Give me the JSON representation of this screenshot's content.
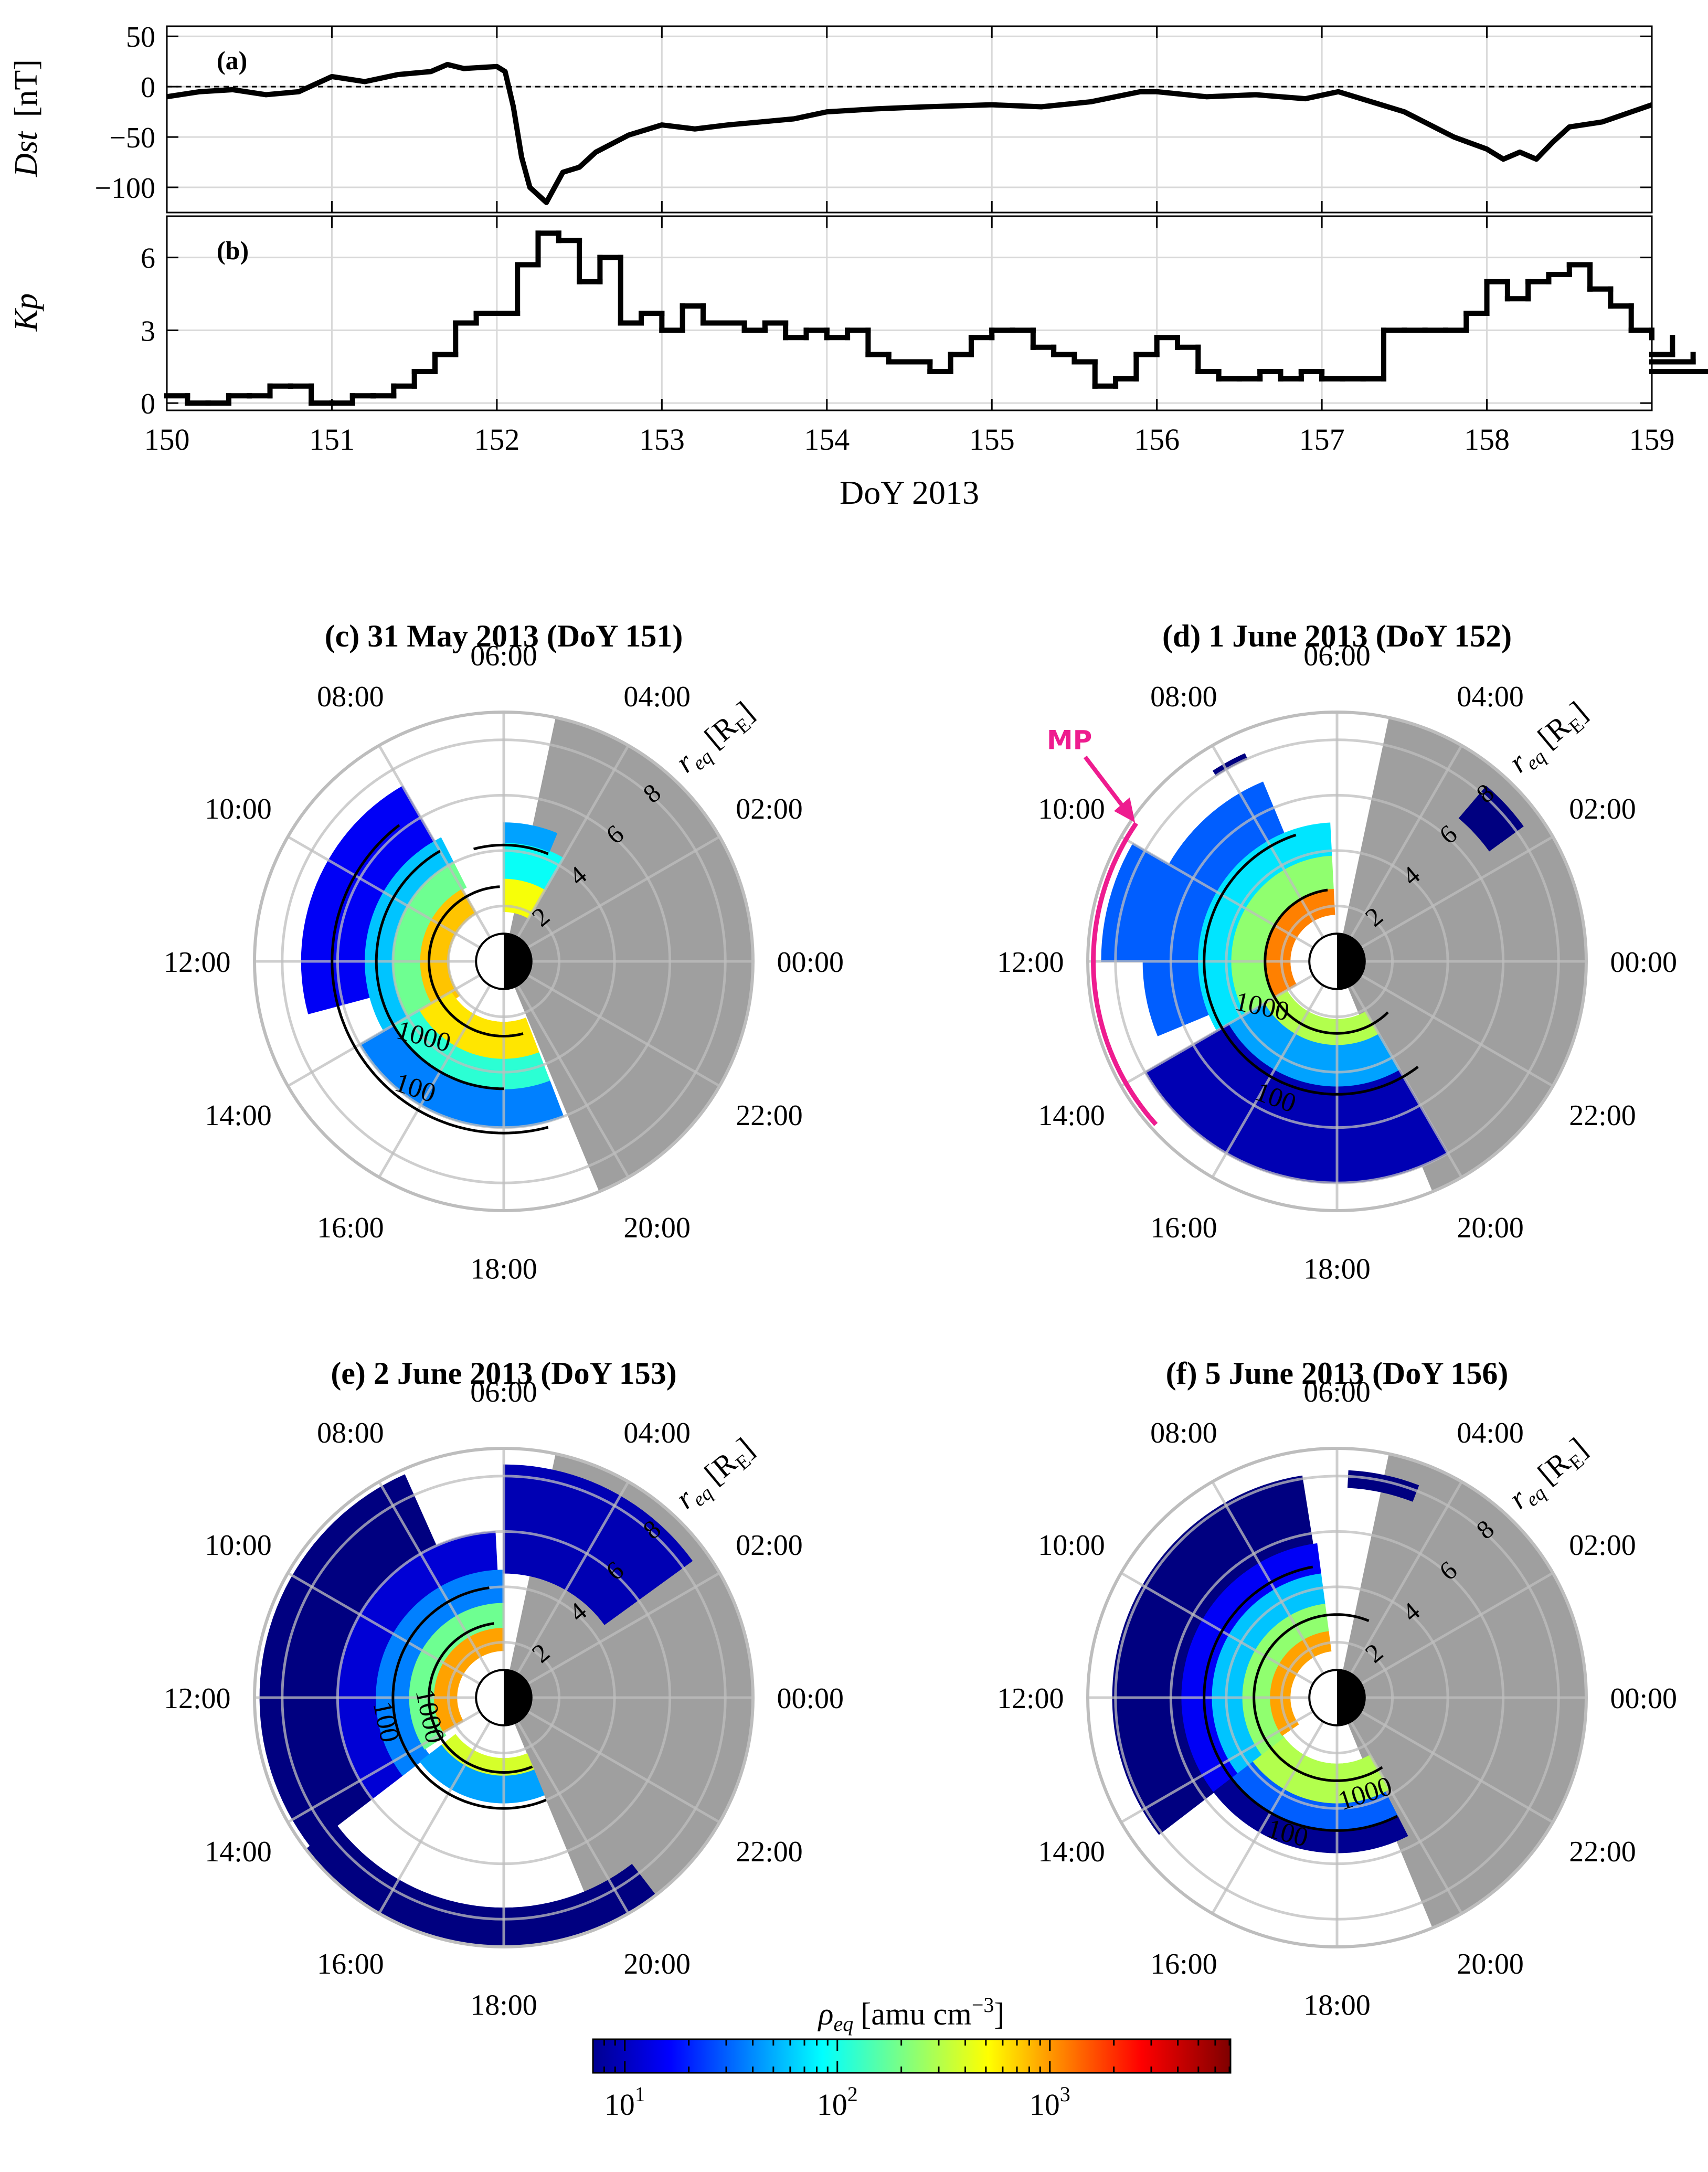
{
  "colors": {
    "axis": "#000000",
    "grid": "#d9d9d9",
    "polar_grid": "#bdbdbd",
    "unavailable": "#9f9f9f",
    "mp": "#ee1c8f"
  },
  "chart_data": [
    {
      "id": "a",
      "type": "line",
      "panel_label": "(a)",
      "ylabel_var": "Dst",
      "ylabel_unit": "[nT]",
      "xlim": [
        150,
        159
      ],
      "ylim": [
        -125,
        60
      ],
      "yticks": [
        50,
        0,
        -50,
        -100
      ],
      "ytick_labels": [
        "50",
        "0",
        "−50",
        "−100"
      ],
      "reference_line": 0,
      "x": [
        150.0,
        150.2,
        150.4,
        150.6,
        150.8,
        151.0,
        151.2,
        151.4,
        151.6,
        151.7,
        151.8,
        152.0,
        152.05,
        152.1,
        152.15,
        152.2,
        152.3,
        152.4,
        152.5,
        152.6,
        152.8,
        153.0,
        153.2,
        153.4,
        153.6,
        153.8,
        154.0,
        154.3,
        154.6,
        155.0,
        155.3,
        155.6,
        155.9,
        156.0,
        156.3,
        156.6,
        156.9,
        157.1,
        157.3,
        157.5,
        157.8,
        158.0,
        158.1,
        158.2,
        158.3,
        158.4,
        158.5,
        158.7,
        159.0
      ],
      "y": [
        -10,
        -5,
        -3,
        -8,
        -5,
        10,
        5,
        12,
        15,
        22,
        18,
        20,
        15,
        -20,
        -70,
        -100,
        -115,
        -85,
        -80,
        -65,
        -48,
        -38,
        -42,
        -38,
        -35,
        -32,
        -25,
        -22,
        -20,
        -18,
        -20,
        -15,
        -5,
        -5,
        -10,
        -8,
        -12,
        -5,
        -15,
        -25,
        -50,
        -62,
        -72,
        -65,
        -72,
        -55,
        -40,
        -35,
        -18
      ]
    },
    {
      "id": "b",
      "type": "step",
      "panel_label": "(b)",
      "ylabel_var": "Kp",
      "xlim": [
        150,
        159
      ],
      "ylim": [
        -0.3,
        7.7
      ],
      "yticks": [
        6,
        3,
        0
      ],
      "ytick_labels": [
        "6",
        "3",
        "0"
      ],
      "xticks": [
        150,
        151,
        152,
        153,
        154,
        155,
        156,
        157,
        158,
        159
      ],
      "xtick_labels": [
        "150",
        "151",
        "152",
        "153",
        "154",
        "155",
        "156",
        "157",
        "158",
        "159"
      ],
      "xlabel": "DoY 2013",
      "bin_hours": 3,
      "values": [
        0.3,
        0,
        0,
        0.3,
        0.3,
        0.7,
        0.7,
        0,
        0,
        0.3,
        0.3,
        0.7,
        1.3,
        2.0,
        3.3,
        3.7,
        3.7,
        5.7,
        7.0,
        6.7,
        5.0,
        6.0,
        3.3,
        3.7,
        3.0,
        4.0,
        3.3,
        3.3,
        3.0,
        3.3,
        2.7,
        3.0,
        2.7,
        3.0,
        2.0,
        1.7,
        1.7,
        1.3,
        2.0,
        2.7,
        3.0,
        3.0,
        2.3,
        2.0,
        1.7,
        0.7,
        1.0,
        2.0,
        2.7,
        2.3,
        1.3,
        1.0,
        1.0,
        1.3,
        1.0,
        1.3,
        1.0,
        1.0,
        1.0,
        3.0,
        3.0,
        3.0,
        3.0,
        3.7,
        5.0,
        4.3,
        5.0,
        5.3,
        5.7,
        4.7,
        4.0,
        3.0,
        2.7,
        2.0,
        1.7,
        1.3,
        1.3
      ]
    }
  ],
  "polar_panels": [
    {
      "id": "c",
      "title": "(c) 31 May 2013 (DoY 151)",
      "contour_labels": [
        {
          "text": "1000",
          "r": 4.0,
          "mlt": 14.8,
          "rot": 15
        },
        {
          "text": "100",
          "r": 5.6,
          "mlt": 15.6,
          "rot": 18
        }
      ],
      "blobs": [
        {
          "r1": 5.0,
          "r2": 7.3,
          "m1": 8.0,
          "m2": 13.0,
          "level": 1.2
        },
        {
          "r1": 4.0,
          "r2": 5.0,
          "m1": 7.8,
          "m2": 14.0,
          "level": 1.8
        },
        {
          "r1": 3.0,
          "r2": 4.0,
          "m1": 7.8,
          "m2": 14.5,
          "level": 2.3
        },
        {
          "r1": 2.0,
          "r2": 3.0,
          "m1": 8.0,
          "m2": 14.5,
          "level": 2.9
        },
        {
          "r1": 1.8,
          "r2": 3.0,
          "m1": 4.0,
          "m2": 6.0,
          "level": 2.7
        },
        {
          "r1": 3.0,
          "r2": 4.3,
          "m1": 4.0,
          "m2": 6.0,
          "level": 2.0
        },
        {
          "r1": 4.3,
          "r2": 5.0,
          "m1": 4.5,
          "m2": 6.0,
          "level": 1.7
        },
        {
          "r1": 4.6,
          "r2": 6.0,
          "m1": 14.0,
          "m2": 19.4,
          "level": 1.6
        },
        {
          "r1": 3.5,
          "r2": 4.6,
          "m1": 14.0,
          "m2": 19.4,
          "level": 2.1
        },
        {
          "r1": 2.2,
          "r2": 3.5,
          "m1": 14.0,
          "m2": 19.4,
          "level": 2.8
        }
      ],
      "contours": [
        {
          "r": 2.7,
          "m1": 6.2,
          "m2": 14.0,
          "tail_to": 19.0
        },
        {
          "r": 4.2,
          "m1": 4.5,
          "m2": 7.0,
          "tail_to": 7.0
        },
        {
          "r": 4.6,
          "m1": 8.0,
          "m2": 13.8,
          "tail_to": 18.0
        },
        {
          "r": 6.2,
          "m1": 8.5,
          "m2": 15.0,
          "tail_to": 19.0
        }
      ],
      "mp": null
    },
    {
      "id": "d",
      "title": "(d) 1 June 2013 (DoY 152)",
      "contour_labels": [
        {
          "text": "1000",
          "r": 3.2,
          "mlt": 14.0,
          "rot": 12
        },
        {
          "text": "100",
          "r": 5.4,
          "mlt": 16.3,
          "rot": 20
        }
      ],
      "blobs": [
        {
          "r1": 6.8,
          "r2": 8.5,
          "m1": 10.0,
          "m2": 12.0,
          "level": 1.5
        },
        {
          "r1": 5.0,
          "r2": 7.0,
          "m1": 7.5,
          "m2": 13.5,
          "level": 1.5
        },
        {
          "r1": 3.8,
          "r2": 5.0,
          "m1": 6.2,
          "m2": 14.2,
          "level": 1.9
        },
        {
          "r1": 2.6,
          "r2": 3.8,
          "m1": 6.2,
          "m2": 14.2,
          "level": 2.4
        },
        {
          "r1": 1.7,
          "r2": 2.6,
          "m1": 6.2,
          "m2": 14.0,
          "level": 3.1
        },
        {
          "r1": 4.5,
          "r2": 8.0,
          "m1": 14.0,
          "m2": 20.0,
          "level": 1.0
        },
        {
          "r1": 3.0,
          "r2": 4.5,
          "m1": 14.0,
          "m2": 20.0,
          "level": 1.7
        },
        {
          "r1": 2.1,
          "r2": 3.0,
          "m1": 14.0,
          "m2": 20.0,
          "level": 2.5
        },
        {
          "r1": 6.8,
          "r2": 8.3,
          "m1": 2.4,
          "m2": 3.3,
          "level": 0.5
        },
        {
          "r1": 8.0,
          "r2": 8.2,
          "m1": 7.6,
          "m2": 8.2,
          "level": 0.4
        }
      ],
      "contours": [
        {
          "r": 2.6,
          "m1": 6.5,
          "m2": 14.0,
          "tail_to": 21.0
        },
        {
          "r": 4.8,
          "m1": 7.2,
          "m2": 14.5,
          "tail_to": 20.5
        }
      ],
      "mp": {
        "label": "MP",
        "r": 8.8,
        "m1": 9.7,
        "m2": 14.8
      }
    },
    {
      "id": "e",
      "title": "(e) 2 June 2013 (DoY 153)",
      "contour_labels": [
        {
          "text": "1000",
          "r": 3.0,
          "mlt": 12.5,
          "rot": 78
        },
        {
          "text": "100",
          "r": 4.6,
          "mlt": 12.5,
          "rot": 78
        }
      ],
      "blobs": [
        {
          "r1": 6.0,
          "r2": 8.8,
          "m1": 7.6,
          "m2": 14.5,
          "level": 0.7
        },
        {
          "r1": 4.6,
          "r2": 6.0,
          "m1": 6.2,
          "m2": 14.5,
          "level": 1.1
        },
        {
          "r1": 3.4,
          "r2": 4.6,
          "m1": 6.0,
          "m2": 14.5,
          "level": 1.6
        },
        {
          "r1": 2.5,
          "r2": 3.4,
          "m1": 6.0,
          "m2": 14.2,
          "level": 2.3
        },
        {
          "r1": 1.7,
          "r2": 2.5,
          "m1": 6.0,
          "m2": 14.0,
          "level": 3.0
        },
        {
          "r1": 4.5,
          "r2": 8.4,
          "m1": 2.4,
          "m2": 6.0,
          "level": 1.0
        },
        {
          "r1": 7.6,
          "r2": 9.0,
          "m1": 14.5,
          "m2": 20.5,
          "level": 0.3
        },
        {
          "r1": 2.8,
          "r2": 3.8,
          "m1": 14.5,
          "m2": 19.5,
          "level": 1.7
        },
        {
          "r1": 2.2,
          "r2": 2.8,
          "m1": 14.5,
          "m2": 19.5,
          "level": 2.6
        }
      ],
      "contours": [
        {
          "r": 2.7,
          "m1": 6.5,
          "m2": 14.2,
          "tail_to": 19.5
        },
        {
          "r": 4.0,
          "m1": 6.5,
          "m2": 13.8,
          "tail_to": 19.5
        }
      ],
      "mp": null
    },
    {
      "id": "f",
      "title": "(f) 5 June 2013 (DoY 156)",
      "contour_labels": [
        {
          "text": "1000",
          "r": 3.6,
          "mlt": 19.2,
          "rot": -18
        },
        {
          "text": "100",
          "r": 5.2,
          "mlt": 16.6,
          "rot": 15
        }
      ],
      "blobs": [
        {
          "r1": 5.6,
          "r2": 8.1,
          "m1": 6.6,
          "m2": 14.5,
          "level": 0.6
        },
        {
          "r1": 4.5,
          "r2": 5.6,
          "m1": 6.5,
          "m2": 14.5,
          "level": 1.2
        },
        {
          "r1": 3.4,
          "r2": 4.5,
          "m1": 6.5,
          "m2": 14.5,
          "level": 1.8
        },
        {
          "r1": 2.4,
          "r2": 3.4,
          "m1": 6.5,
          "m2": 14.5,
          "level": 2.4
        },
        {
          "r1": 1.7,
          "r2": 2.4,
          "m1": 6.5,
          "m2": 14.3,
          "level": 3.0
        },
        {
          "r1": 4.8,
          "r2": 5.6,
          "m1": 14.5,
          "m2": 19.8,
          "level": 0.9
        },
        {
          "r1": 3.8,
          "r2": 4.8,
          "m1": 14.5,
          "m2": 19.8,
          "level": 1.5
        },
        {
          "r1": 2.4,
          "r2": 3.8,
          "m1": 14.5,
          "m2": 20.0,
          "level": 2.5
        },
        {
          "r1": 7.6,
          "r2": 8.2,
          "m1": 4.6,
          "m2": 5.8,
          "level": 0.3
        }
      ],
      "contours": [
        {
          "r": 3.0,
          "m1": 4.5,
          "m2": 14.3,
          "tail_to": 20.2
        },
        {
          "r": 4.8,
          "m1": 6.7,
          "m2": 14.6,
          "tail_to": 19.8
        }
      ],
      "mp": null
    }
  ],
  "polar_common": {
    "rmax": 9,
    "r_rings": [
      2,
      4,
      6,
      8
    ],
    "r_tick_labels": [
      "2",
      "4",
      "6",
      "8"
    ],
    "r_axis_label": "r",
    "r_axis_sub": "eq",
    "r_axis_unit": "[R",
    "r_axis_unit_sub": "E",
    "r_axis_unit_close": "]",
    "mlt_labels": [
      "00:00",
      "02:00",
      "04:00",
      "06:00",
      "08:00",
      "10:00",
      "12:00",
      "14:00",
      "16:00",
      "18:00",
      "20:00",
      "22:00"
    ],
    "mlt_hours": [
      0,
      2,
      4,
      6,
      8,
      10,
      12,
      14,
      16,
      18,
      20,
      22
    ],
    "unavailable_sectors": [
      {
        "m1": 19.5,
        "m2": 29.2
      }
    ]
  },
  "colorbar": {
    "label": "ρ",
    "label_sub": "eq",
    "unit": "[amu cm",
    "unit_sup": "−3",
    "unit_close": "]",
    "log_min": 0.85,
    "log_max": 3.85,
    "ticks": [
      1,
      2,
      3
    ],
    "tick_base": "10",
    "tick_exps": [
      "1",
      "2",
      "3"
    ]
  }
}
